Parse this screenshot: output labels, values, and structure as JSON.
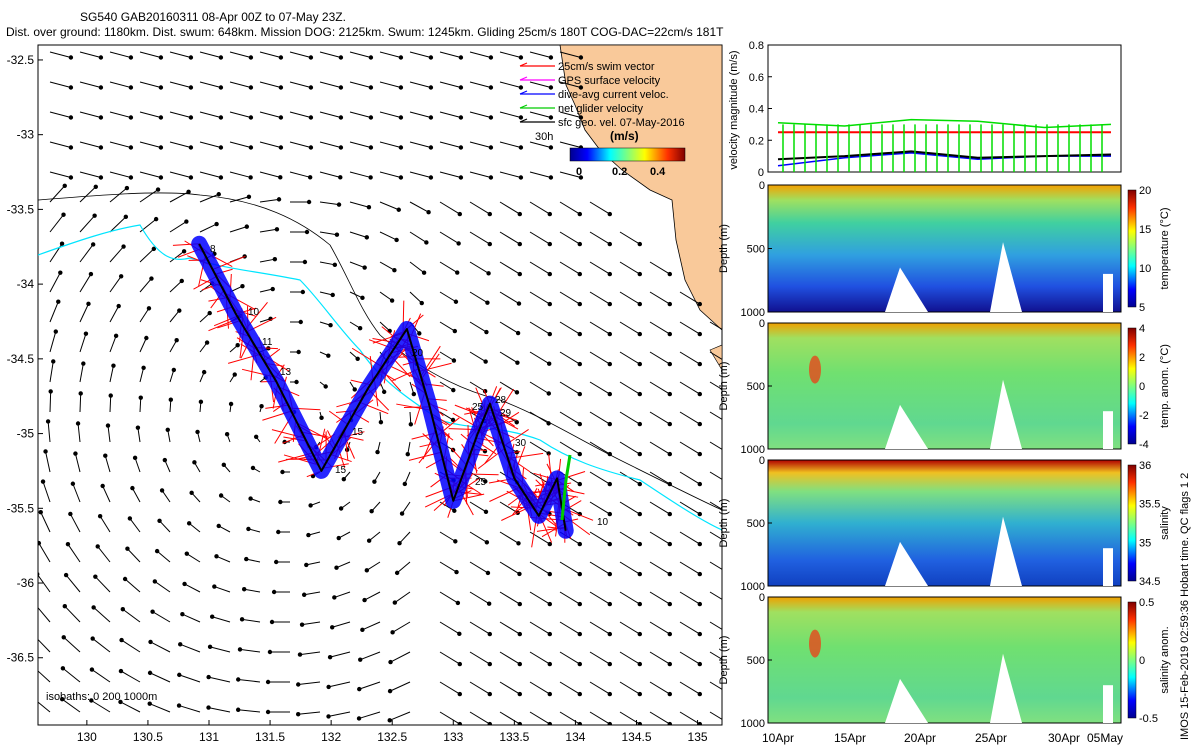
{
  "header": {
    "line1": "SG540 GAB20160311 08-Apr 00Z to 07-May 23Z.",
    "line2": "Dist. over ground: 1180km. Dist. swum: 648km. Mission DOG: 2125km. Swum: 1245km. Gliding 25cm/s 180T COG-DAC=22cm/s 181T"
  },
  "map": {
    "x_ticks": [
      "130",
      "130.5",
      "131",
      "131.5",
      "132",
      "132.5",
      "133",
      "133.5",
      "134",
      "134.5",
      "135"
    ],
    "y_ticks": [
      "-32.5",
      "-33",
      "-33.5",
      "-34",
      "-34.5",
      "-35",
      "-35.5",
      "-36",
      "-36.5"
    ],
    "legend": [
      {
        "label": "25cm/s swim vector",
        "color": "#ff0000"
      },
      {
        "label": "GPS surface velocity",
        "color": "#ff00ff"
      },
      {
        "label": "dive-avg current veloc.",
        "color": "#0000ff"
      },
      {
        "label": "net glider velocity",
        "color": "#00cc00"
      },
      {
        "label": "sfc geo. vel. 07-May-2016",
        "color": "#000000"
      }
    ],
    "age_label": "30h",
    "colorbar_title": "(m/s)",
    "colorbar_ticks": [
      "0",
      "0.2",
      "0.4"
    ],
    "isobaths_note": "isobaths: 0   200  1000m",
    "day_labels": [
      "8",
      "10",
      "11",
      "13",
      "15",
      "15",
      "20",
      "25",
      "25",
      "28",
      "29",
      "30",
      "10"
    ],
    "colors": {
      "land": "#f9c99a",
      "track": "#000000",
      "swim": "#ff0000",
      "current": "#0000ff",
      "shelf_200m": "#00e5ff"
    }
  },
  "velocity_panel": {
    "ylabel": "velocity magnitude (m/s)",
    "y_ticks": [
      "0",
      "0.2",
      "0.4",
      "0.6",
      "0.8"
    ],
    "target_speed": 0.25,
    "colors": {
      "glider": "#00dd00",
      "current": "#0000ff",
      "geostrophic": "#000000",
      "target": "#ff0000"
    }
  },
  "sections": [
    {
      "ylabel": "temperature (°C)",
      "cticks": [
        "5",
        "10",
        "15",
        "20"
      ]
    },
    {
      "ylabel": "temp. anom. (°C)",
      "cticks": [
        "-4",
        "-2",
        "0",
        "2",
        "4"
      ]
    },
    {
      "ylabel": "salinity",
      "cticks": [
        "34.5",
        "35",
        "35.5",
        "36"
      ]
    },
    {
      "ylabel": "salinity anom.",
      "cticks": [
        "-0.5",
        "0",
        "0.5"
      ]
    }
  ],
  "section_depth_label": "Depth (m)",
  "section_depth_ticks": [
    "0",
    "500",
    "1000"
  ],
  "time_ticks": [
    "10Apr",
    "15Apr",
    "20Apr",
    "25Apr",
    "30Apr",
    "05May"
  ],
  "side_note": "IMOS 15-Feb-2019 02:59:36 Hobart time. QC flags 1 2",
  "chart_data": [
    {
      "type": "line",
      "title": "",
      "xlabel": "",
      "ylabel": "velocity magnitude (m/s)",
      "ylim": [
        0,
        0.8
      ],
      "grid": false,
      "x": [
        "10Apr",
        "15Apr",
        "20Apr",
        "25Apr",
        "30Apr",
        "05May"
      ],
      "series": [
        {
          "values": [
            0.31,
            0.29,
            0.33,
            0.32,
            0.28,
            0.3
          ]
        },
        {
          "values": [
            0.04,
            0.09,
            0.12,
            0.08,
            0.1,
            0.1
          ]
        },
        {
          "values": [
            0.08,
            0.1,
            0.13,
            0.09,
            0.1,
            0.11
          ]
        },
        {
          "values": [
            0.25,
            0.25,
            0.25,
            0.25,
            0.25,
            0.25
          ]
        }
      ]
    },
    {
      "type": "scatter",
      "title": "",
      "xlabel": "",
      "ylabel": "",
      "xlim": [
        129.6,
        135.2
      ],
      "ylim": [
        -36.95,
        -32.4
      ],
      "x_ticks": [
        130,
        130.5,
        131,
        131.5,
        132,
        132.5,
        133,
        133.5,
        134,
        134.5,
        135
      ],
      "y_ticks": [
        -32.5,
        -33,
        -33.5,
        -34,
        -34.5,
        -35,
        -35.5,
        -36,
        -36.5
      ],
      "series": [
        {
          "x": [
            130.92,
            131.22,
            131.55,
            131.92,
            132.3,
            132.62,
            132.8,
            133.0,
            133.2,
            133.3,
            133.5,
            133.7,
            133.85,
            133.92
          ],
          "y": [
            -33.73,
            -34.2,
            -34.65,
            -35.25,
            -34.7,
            -34.3,
            -34.8,
            -35.45,
            -35.0,
            -34.8,
            -35.3,
            -35.55,
            -35.3,
            -35.65
          ]
        }
      ]
    }
  ]
}
